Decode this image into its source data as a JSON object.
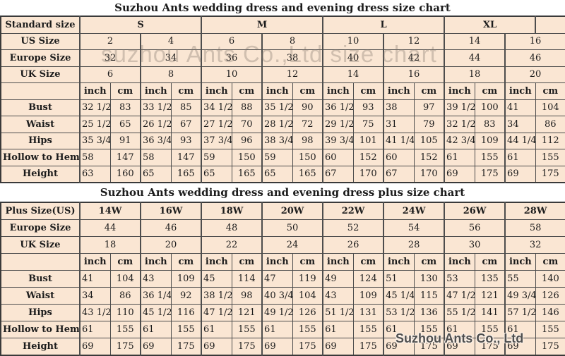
{
  "page": {
    "colors": {
      "cell_bg": "#fae6d3",
      "border_thin": "#4d4d4d",
      "border_thick": "#3a3a3a",
      "title_bg": "#ffffff",
      "text": "#1c1c1c"
    }
  },
  "watermarks": {
    "center_text": "suzhou Ants Co.,Ltd size chart",
    "corner_text": "Suzhou Ants Co., Ltd"
  },
  "units": [
    "inch",
    "cm"
  ],
  "tables": [
    {
      "title": "Suzhou Ants wedding dress and evening dress size chart",
      "corner_label": "Standard size",
      "size_groups": [
        {
          "label": "S",
          "span": 4
        },
        {
          "label": "M",
          "span": 4
        },
        {
          "label": "L",
          "span": 4
        },
        {
          "label": "XL",
          "span": 3
        },
        {
          "label": "",
          "span": 1
        }
      ],
      "size_rows": [
        {
          "label": "US Size",
          "values": [
            "2",
            "4",
            "6",
            "8",
            "10",
            "12",
            "14",
            "16"
          ]
        },
        {
          "label": "Europe Size",
          "values": [
            "32",
            "34",
            "36",
            "38",
            "40",
            "42",
            "44",
            "46"
          ]
        },
        {
          "label": "UK Size",
          "values": [
            "6",
            "8",
            "10",
            "12",
            "14",
            "16",
            "18",
            "20"
          ]
        }
      ],
      "measure_rows": [
        {
          "label": "Bust",
          "values": [
            "32 1/2",
            "83",
            "33 1/2",
            "85",
            "34 1/2",
            "88",
            "35 1/2",
            "90",
            "36 1/2",
            "93",
            "38",
            "97",
            "39 1/2",
            "100",
            "41",
            "104"
          ]
        },
        {
          "label": "Waist",
          "values": [
            "25 1/2",
            "65",
            "26 1/2",
            "67",
            "27 1/2",
            "70",
            "28 1/2",
            "72",
            "29 1/2",
            "75",
            "31",
            "79",
            "32 1/2",
            "83",
            "34",
            "86"
          ]
        },
        {
          "label": "Hips",
          "values": [
            "35 3/4",
            "91",
            "36 3/4",
            "93",
            "37 3/4",
            "96",
            "38 3/4",
            "98",
            "39 3/4",
            "101",
            "41 1/4",
            "105",
            "42 3/4",
            "109",
            "44 1/4",
            "112"
          ]
        },
        {
          "label": "Hollow to Hem",
          "values": [
            "58",
            "147",
            "58",
            "147",
            "59",
            "150",
            "59",
            "150",
            "60",
            "152",
            "60",
            "152",
            "61",
            "155",
            "61",
            "155"
          ]
        },
        {
          "label": "Height",
          "values": [
            "63",
            "160",
            "65",
            "165",
            "65",
            "165",
            "65",
            "165",
            "67",
            "170",
            "67",
            "170",
            "69",
            "175",
            "69",
            "175"
          ]
        }
      ]
    },
    {
      "title": "Suzhou Ants wedding dress and evening dress plus size chart",
      "corner_label": "Plus Size(US)",
      "size_groups": [
        {
          "label": "14W",
          "span": 2
        },
        {
          "label": "16W",
          "span": 2
        },
        {
          "label": "18W",
          "span": 2
        },
        {
          "label": "20W",
          "span": 2
        },
        {
          "label": "22W",
          "span": 2
        },
        {
          "label": "24W",
          "span": 2
        },
        {
          "label": "26W",
          "span": 2
        },
        {
          "label": "28W",
          "span": 2
        }
      ],
      "size_rows": [
        {
          "label": "Europe Size",
          "values": [
            "44",
            "46",
            "48",
            "50",
            "52",
            "54",
            "56",
            "58"
          ]
        },
        {
          "label": "UK Size",
          "values": [
            "18",
            "20",
            "22",
            "24",
            "26",
            "28",
            "30",
            "32"
          ]
        }
      ],
      "measure_rows": [
        {
          "label": "Bust",
          "values": [
            "41",
            "104",
            "43",
            "109",
            "45",
            "114",
            "47",
            "119",
            "49",
            "124",
            "51",
            "130",
            "53",
            "135",
            "55",
            "140"
          ]
        },
        {
          "label": "Waist",
          "values": [
            "34",
            "86",
            "36 1/4",
            "92",
            "38 1/2",
            "98",
            "40 3/4",
            "104",
            "43",
            "109",
            "45 1/4",
            "115",
            "47 1/2",
            "121",
            "49 3/4",
            "126"
          ]
        },
        {
          "label": "Hips",
          "values": [
            "43 1/2",
            "110",
            "45 1/2",
            "116",
            "47 1/2",
            "121",
            "49 1/2",
            "126",
            "51 1/2",
            "131",
            "53 1/2",
            "136",
            "55 1/2",
            "141",
            "57 1/2",
            "146"
          ]
        },
        {
          "label": "Hollow to Hem",
          "values": [
            "61",
            "155",
            "61",
            "155",
            "61",
            "155",
            "61",
            "155",
            "61",
            "155",
            "61",
            "155",
            "61",
            "155",
            "61",
            "155"
          ]
        },
        {
          "label": "Height",
          "values": [
            "69",
            "175",
            "69",
            "175",
            "69",
            "175",
            "69",
            "175",
            "69",
            "175",
            "69",
            "175",
            "69",
            "175",
            "69",
            "175"
          ]
        }
      ]
    }
  ]
}
